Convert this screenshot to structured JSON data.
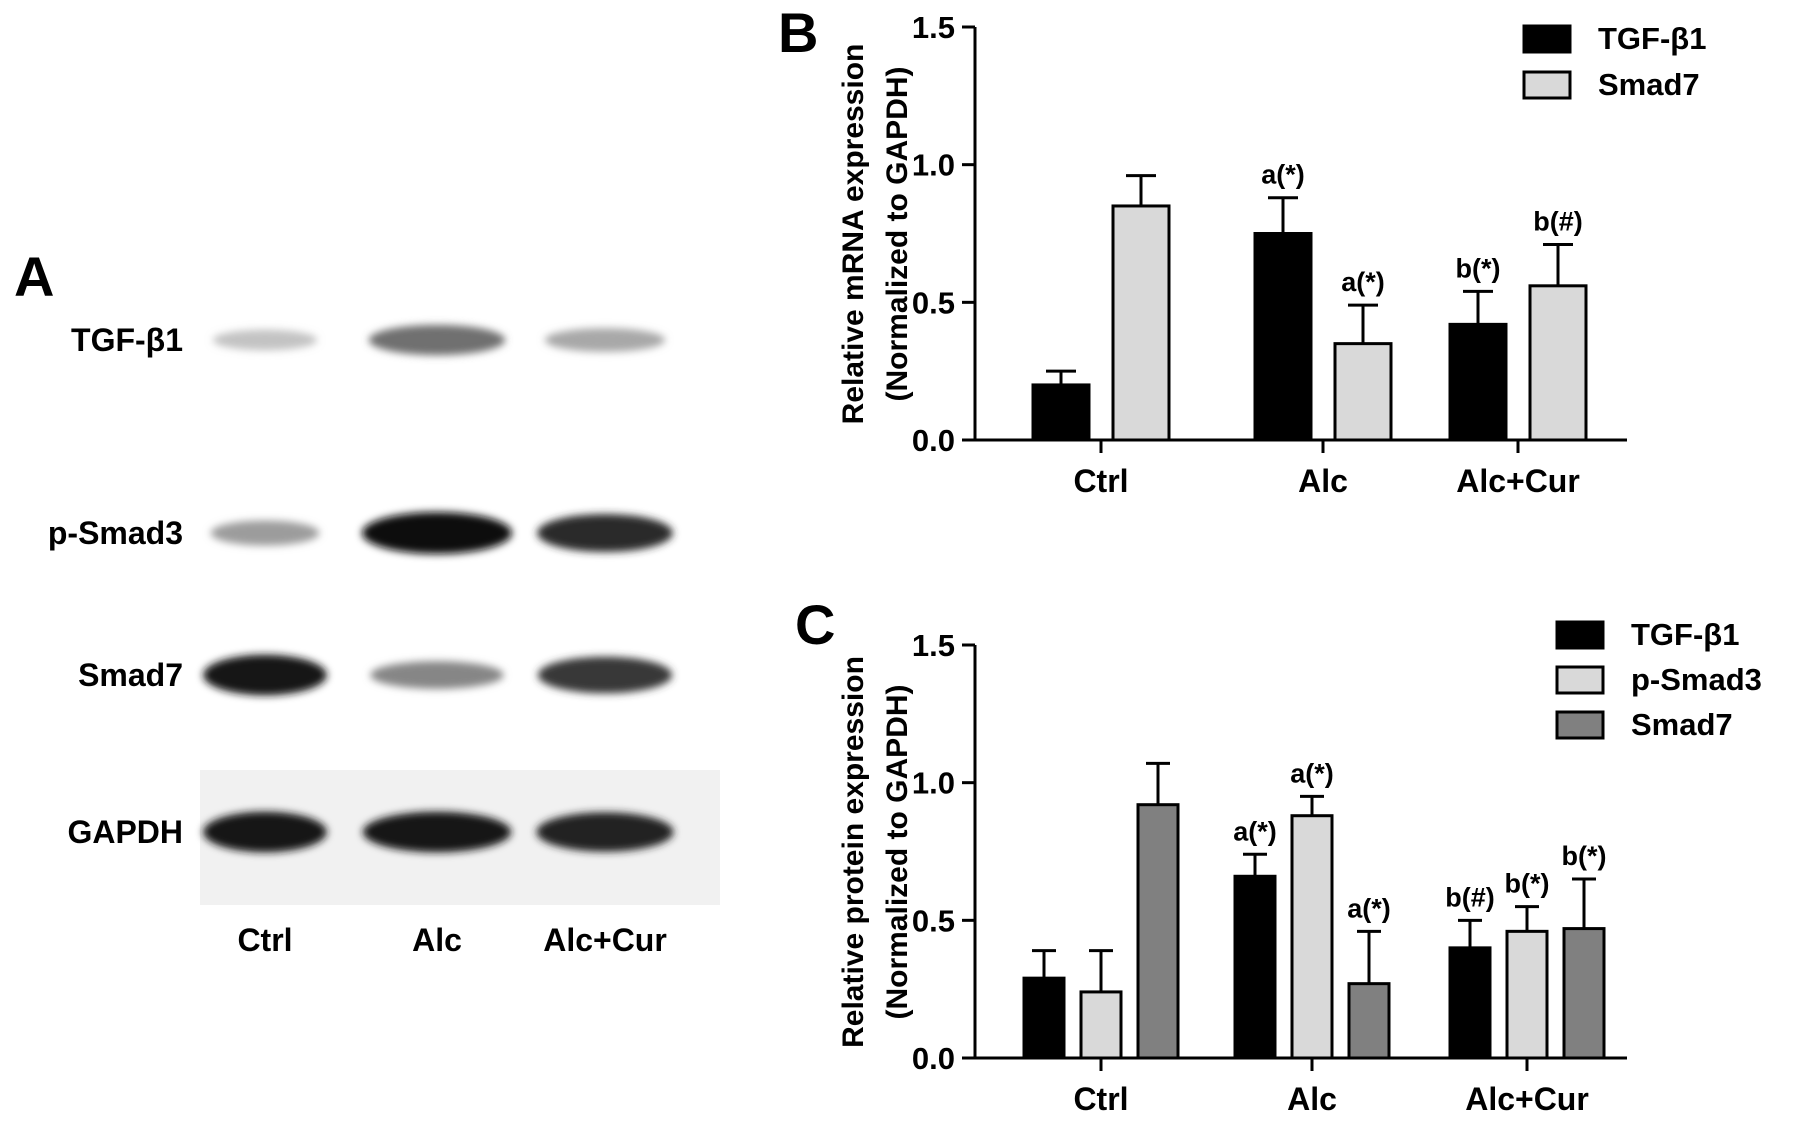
{
  "panels": {
    "a": "A",
    "b": "B",
    "c": "C"
  },
  "blot": {
    "proteins": [
      "TGF-β1",
      "p-Smad3",
      "Smad7",
      "GAPDH"
    ],
    "lanes": [
      "Ctrl",
      "Alc",
      "Alc+Cur"
    ],
    "band_intensity": [
      [
        0.18,
        0.55,
        0.3
      ],
      [
        0.35,
        1.0,
        0.85
      ],
      [
        0.95,
        0.45,
        0.8
      ],
      [
        0.95,
        0.95,
        0.9
      ]
    ]
  },
  "colors": {
    "series_black": "#000000",
    "series_light": "#d9d9d9",
    "series_gray": "#808080"
  },
  "chart_data": [
    {
      "type": "bar",
      "panel": "B",
      "categories": [
        "Ctrl",
        "Alc",
        "Alc+Cur"
      ],
      "series": [
        {
          "name": "TGF-β1",
          "color": "#000000",
          "values": [
            0.2,
            0.75,
            0.42
          ],
          "errors": [
            0.05,
            0.13,
            0.12
          ],
          "annotations": [
            "",
            "a(*)",
            "b(*)"
          ]
        },
        {
          "name": "Smad7",
          "color": "#d9d9d9",
          "values": [
            0.85,
            0.35,
            0.56
          ],
          "errors": [
            0.11,
            0.14,
            0.15
          ],
          "annotations": [
            "",
            "a(*)",
            "b(#)"
          ]
        }
      ],
      "ylabel": "Relative mRNA expression",
      "ylabel2": "(Normalized to GAPDH)",
      "ylim": [
        0,
        1.5
      ],
      "yticks": [
        "0.0",
        "0.5",
        "1.0",
        "1.5"
      ],
      "legend_position": "top-right"
    },
    {
      "type": "bar",
      "panel": "C",
      "categories": [
        "Ctrl",
        "Alc",
        "Alc+Cur"
      ],
      "series": [
        {
          "name": "TGF-β1",
          "color": "#000000",
          "values": [
            0.29,
            0.66,
            0.4
          ],
          "errors": [
            0.1,
            0.08,
            0.1
          ],
          "annotations": [
            "",
            "a(*)",
            "b(#)"
          ]
        },
        {
          "name": "p-Smad3",
          "color": "#d9d9d9",
          "values": [
            0.24,
            0.88,
            0.46
          ],
          "errors": [
            0.15,
            0.07,
            0.09
          ],
          "annotations": [
            "",
            "a(*)",
            "b(*)"
          ]
        },
        {
          "name": "Smad7",
          "color": "#808080",
          "values": [
            0.92,
            0.27,
            0.47
          ],
          "errors": [
            0.15,
            0.19,
            0.18
          ],
          "annotations": [
            "",
            "a(*)",
            "b(*)"
          ]
        }
      ],
      "ylabel": "Relative protein expression",
      "ylabel2": "(Normalized to GAPDH)",
      "ylim": [
        0,
        1.5
      ],
      "yticks": [
        "0.0",
        "0.5",
        "1.0",
        "1.5"
      ],
      "legend_position": "top-right"
    }
  ]
}
